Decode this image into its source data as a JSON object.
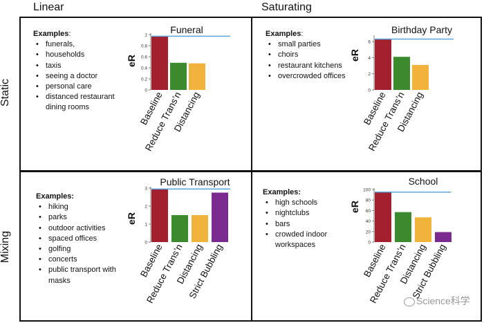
{
  "columns": [
    "Linear",
    "Saturating"
  ],
  "rows": [
    "Static",
    "Mixing"
  ],
  "colors": {
    "red": "#a3202e",
    "green": "#3c8a2e",
    "yellow": "#f0b43c",
    "purple": "#7b2a90",
    "line": "#5aa5dc"
  },
  "watermark": "Science科学",
  "panels": [
    {
      "examples_title": "Examples",
      "examples_title_suffix": ":",
      "examples": [
        "funerals,",
        "households",
        "taxis",
        "seeing a doctor",
        "personal care",
        "distanced restaurant dining rooms"
      ]
    },
    {
      "examples_title": "Examples",
      "examples_title_suffix": ":",
      "examples": [
        "small parties",
        "choirs",
        "restaurant kitchens",
        "overcrowded offices"
      ]
    },
    {
      "examples_title": "Examples",
      "examples_title_suffix": ":",
      "examples": [
        "hiking",
        "parks",
        "outdoor activities",
        "spaced offices",
        "golfing",
        "concerts",
        "public transport with masks"
      ]
    },
    {
      "examples_title": "Examples",
      "examples_title_suffix": ":",
      "examples": [
        "high schools",
        "nightclubs",
        "bars",
        "crowded indoor workspaces"
      ]
    }
  ],
  "chart_data": [
    {
      "type": "bar",
      "title": "Funeral",
      "ylabel": "eR",
      "categories": [
        "Baseline",
        "Reduce Trans’n",
        "Distancing"
      ],
      "values": [
        0.97,
        0.49,
        0.48
      ],
      "bar_colors": [
        "#a3202e",
        "#3c8a2e",
        "#f0b43c"
      ],
      "ylim": [
        0,
        1
      ],
      "yticks": [
        0,
        0.2,
        0.4,
        0.6,
        0.8,
        1
      ],
      "ytick_labels": [
        "0",
        "0.2",
        "0.4",
        "0.6",
        "0.8",
        "1"
      ],
      "baseline_line": 0.97
    },
    {
      "type": "bar",
      "title": "Birthday Party",
      "ylabel": "eR",
      "categories": [
        "Baseline",
        "Reduce Trans’n",
        "Distancing"
      ],
      "values": [
        6.3,
        4.1,
        3.1
      ],
      "bar_colors": [
        "#a3202e",
        "#3c8a2e",
        "#f0b43c"
      ],
      "ylim": [
        0,
        6.6
      ],
      "yticks": [
        0,
        2,
        4,
        6
      ],
      "ytick_labels": [
        "0",
        "2",
        "4",
        "6"
      ],
      "baseline_line": 6.3
    },
    {
      "type": "bar",
      "title": "Public Transport",
      "ylabel": "eR",
      "categories": [
        "Baseline",
        "Reduce Trans’n",
        "Distancing",
        "Strict Bubbling"
      ],
      "values": [
        2.95,
        1.5,
        1.5,
        2.75
      ],
      "bar_colors": [
        "#a3202e",
        "#3c8a2e",
        "#f0b43c",
        "#7b2a90"
      ],
      "ylim": [
        0,
        3
      ],
      "yticks": [
        0,
        1,
        2,
        3
      ],
      "ytick_labels": [
        "0",
        "1",
        "2",
        "3"
      ],
      "baseline_line": 2.95
    },
    {
      "type": "bar",
      "title": "School",
      "ylabel": "eR",
      "categories": [
        "Baseline",
        "Reduce Trans’n",
        "Distancing",
        "Strict Bubbling"
      ],
      "values": [
        95,
        57,
        47,
        19
      ],
      "bar_colors": [
        "#a3202e",
        "#3c8a2e",
        "#f0b43c",
        "#7b2a90"
      ],
      "ylim": [
        0,
        100
      ],
      "yticks": [
        0,
        20,
        40,
        60,
        80,
        100
      ],
      "ytick_labels": [
        "0",
        "20",
        "40",
        "60",
        "80",
        "100"
      ],
      "baseline_line": 95
    }
  ]
}
